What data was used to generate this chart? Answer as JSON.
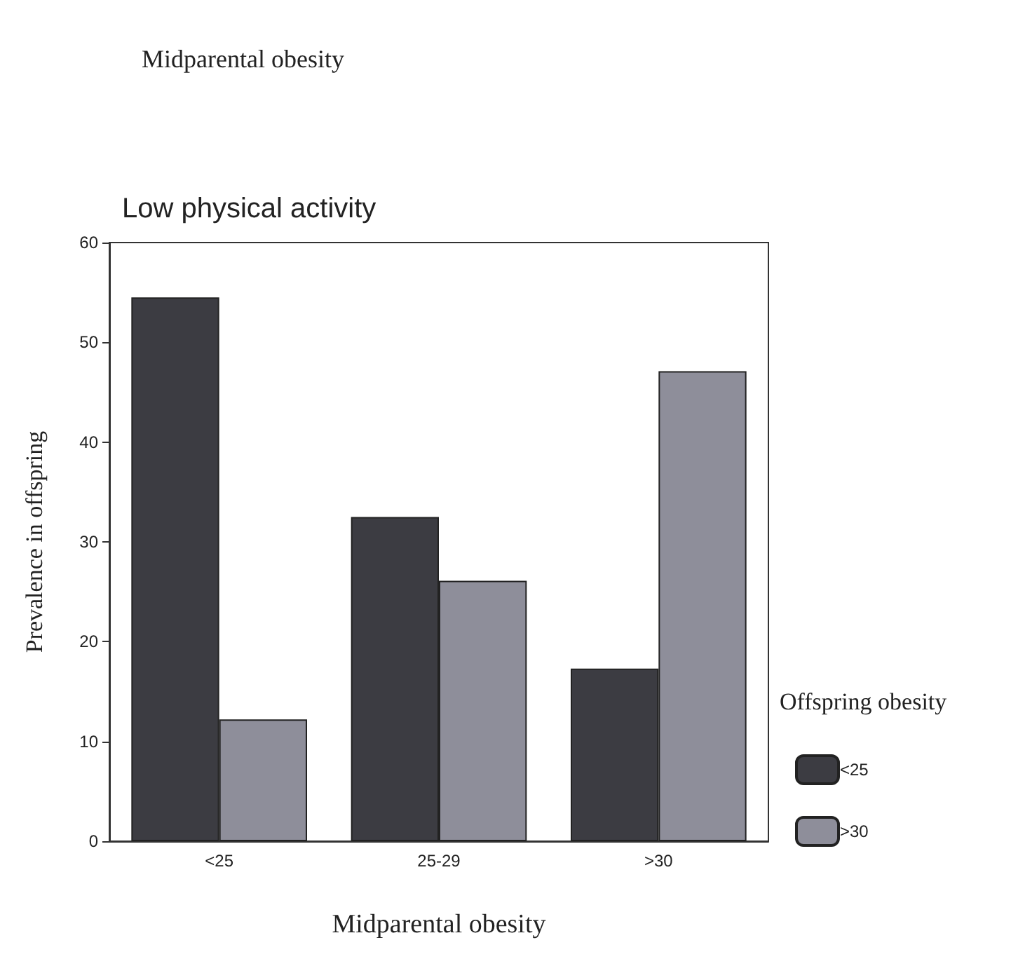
{
  "chart_data": {
    "type": "bar",
    "title": "Midparental obesity",
    "subtitle": "Low physical activity",
    "xlabel": "Midparental obesity",
    "ylabel": "Prevalence in offspring",
    "legend_title": "Offspring obesity",
    "categories": [
      "<25",
      "25-29",
      ">30"
    ],
    "series": [
      {
        "name": "<25",
        "color": "#3c3c42",
        "values": [
          54.5,
          32.5,
          17.3
        ]
      },
      {
        "name": ">30",
        "color": "#8e8e9a",
        "values": [
          12.2,
          26.1,
          47.1
        ]
      }
    ],
    "ylim": [
      0,
      60
    ],
    "yticks": [
      0,
      10,
      20,
      30,
      40,
      50,
      60
    ],
    "grid": false,
    "legend": "right"
  }
}
